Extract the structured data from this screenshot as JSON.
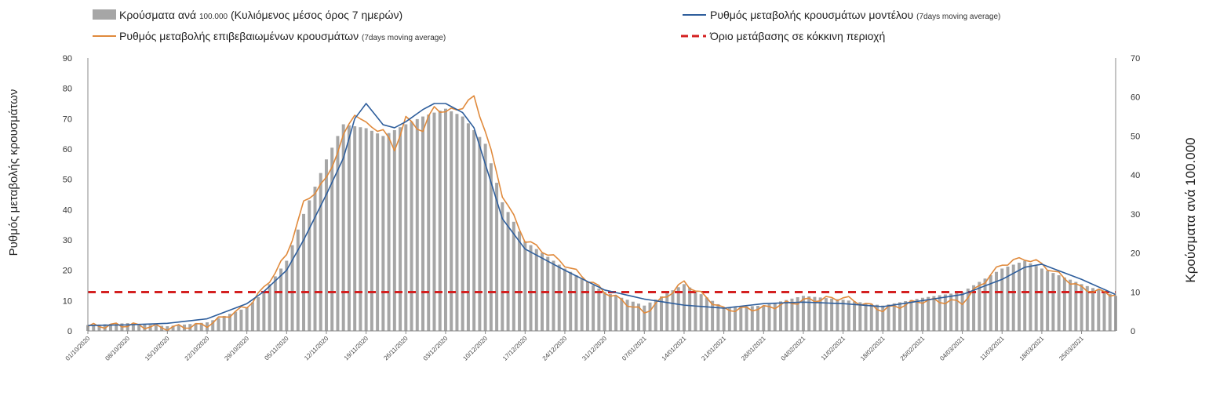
{
  "chart_data": {
    "type": "bar",
    "legend": {
      "bars": {
        "label": "Κρούσματα ανά ",
        "small": "100.000",
        "label2": " (Κυλιόμενος μέσος όρος 7 ημερών)"
      },
      "model": {
        "label": "Ρυθμός μεταβολής κρουσμάτων μοντέλου ",
        "small": "(7days moving average)"
      },
      "confirmed": {
        "label": "Ρυθμός μεταβολής επιβεβαιωμένων κρουσμάτων ",
        "small": "(7days moving average)"
      },
      "threshold": {
        "label": "Όριο μετάβασης σε κόκκινη περιοχή"
      }
    },
    "ylabel_left": "Ρυθμός μεταβολής κρουσμάτων",
    "ylabel_right": "Κρούσματα ανά 100.000",
    "ylim_left": [
      0,
      90
    ],
    "ylim_right": [
      0,
      70
    ],
    "yticks_left": [
      "0",
      "10",
      "20",
      "30",
      "40",
      "50",
      "60",
      "70",
      "80",
      "90"
    ],
    "yticks_right": [
      "0",
      "10",
      "20",
      "30",
      "40",
      "50",
      "60",
      "70"
    ],
    "x_start": "2020-10-01",
    "x_end": "2021-03-31",
    "x_tick_labels": [
      "01/10/2020",
      "08/10/2020",
      "15/10/2020",
      "22/10/2020",
      "29/10/2020",
      "05/11/2020",
      "12/11/2020",
      "19/11/2020",
      "26/11/2020",
      "03/12/2020",
      "10/12/2020",
      "17/12/2020",
      "24/12/2020",
      "31/12/2020",
      "07/01/2021",
      "14/01/2021",
      "21/01/2021",
      "28/01/2021",
      "04/02/2021",
      "11/02/2021",
      "18/02/2021",
      "25/02/2021",
      "04/03/2021",
      "11/03/2021",
      "18/03/2021",
      "25/03/2021"
    ],
    "threshold_value": 12.8,
    "colors": {
      "bars": "#a6a6a6",
      "model": "#2e5e9c",
      "confirmed": "#e08a3c",
      "threshold": "#d42020"
    },
    "bars_per_100k": {
      "dates": [
        "2020-10-01",
        "2020-10-08",
        "2020-10-15",
        "2020-10-22",
        "2020-10-29",
        "2020-11-01",
        "2020-11-05",
        "2020-11-08",
        "2020-11-12",
        "2020-11-15",
        "2020-11-19",
        "2020-11-22",
        "2020-11-26",
        "2020-11-29",
        "2020-12-03",
        "2020-12-06",
        "2020-12-10",
        "2020-12-13",
        "2020-12-17",
        "2020-12-24",
        "2020-12-31",
        "2021-01-07",
        "2021-01-14",
        "2021-01-21",
        "2021-01-28",
        "2021-02-04",
        "2021-02-11",
        "2021-02-18",
        "2021-02-25",
        "2021-03-04",
        "2021-03-11",
        "2021-03-15",
        "2021-03-18",
        "2021-03-25",
        "2021-03-31"
      ],
      "values": [
        1.5,
        2.0,
        1.2,
        2.2,
        6.0,
        10.0,
        18.0,
        30.0,
        44.0,
        53.0,
        52.0,
        50.0,
        53.0,
        55.0,
        57.0,
        55.0,
        48.0,
        33.0,
        23.0,
        16.0,
        10.0,
        6.5,
        12.0,
        6.0,
        6.5,
        9.0,
        8.0,
        6.5,
        8.5,
        10.0,
        16.0,
        18.0,
        16.0,
        12.0,
        9.0
      ]
    },
    "model": {
      "dates": [
        "2020-10-01",
        "2020-10-08",
        "2020-10-15",
        "2020-10-22",
        "2020-10-29",
        "2020-11-01",
        "2020-11-05",
        "2020-11-08",
        "2020-11-12",
        "2020-11-15",
        "2020-11-17",
        "2020-11-19",
        "2020-11-22",
        "2020-11-24",
        "2020-11-26",
        "2020-11-29",
        "2020-12-01",
        "2020-12-03",
        "2020-12-06",
        "2020-12-08",
        "2020-12-10",
        "2020-12-13",
        "2020-12-17",
        "2020-12-24",
        "2020-12-31",
        "2021-01-07",
        "2021-01-14",
        "2021-01-21",
        "2021-01-28",
        "2021-02-04",
        "2021-02-11",
        "2021-02-18",
        "2021-02-25",
        "2021-03-04",
        "2021-03-11",
        "2021-03-15",
        "2021-03-18",
        "2021-03-25",
        "2021-03-31"
      ],
      "values": [
        1.8,
        2.0,
        2.5,
        4.0,
        9.0,
        13.0,
        20.0,
        30.0,
        45.0,
        57.0,
        70.0,
        75.0,
        68.0,
        67.0,
        69.0,
        73.0,
        75.0,
        75.0,
        72.0,
        67.0,
        55.0,
        37.0,
        27.0,
        20.0,
        13.5,
        10.5,
        8.5,
        7.5,
        9.0,
        9.5,
        9.0,
        8.0,
        10.0,
        12.0,
        17.0,
        21.0,
        22.0,
        17.0,
        12.0
      ]
    },
    "confirmed": {
      "dates": [
        "2020-10-01",
        "2020-10-08",
        "2020-10-15",
        "2020-10-22",
        "2020-10-29",
        "2020-11-01",
        "2020-11-05",
        "2020-11-08",
        "2020-11-12",
        "2020-11-15",
        "2020-11-17",
        "2020-11-19",
        "2020-11-22",
        "2020-11-24",
        "2020-11-26",
        "2020-11-29",
        "2020-12-01",
        "2020-12-03",
        "2020-12-06",
        "2020-12-08",
        "2020-12-10",
        "2020-12-13",
        "2020-12-17",
        "2020-12-24",
        "2020-12-31",
        "2021-01-07",
        "2021-01-14",
        "2021-01-21",
        "2021-01-28",
        "2021-02-04",
        "2021-02-11",
        "2021-02-18",
        "2021-02-25",
        "2021-03-04",
        "2021-03-11",
        "2021-03-15",
        "2021-03-18",
        "2021-03-25",
        "2021-03-31"
      ],
      "values": [
        1.5,
        2.0,
        1.0,
        2.0,
        8.0,
        14.0,
        25.0,
        42.0,
        50.0,
        64.0,
        72.0,
        68.0,
        66.0,
        60.0,
        70.0,
        66.0,
        74.0,
        72.0,
        74.0,
        77.0,
        66.0,
        45.0,
        30.0,
        22.0,
        13.0,
        6.0,
        16.0,
        7.0,
        7.5,
        10.0,
        11.0,
        7.0,
        10.0,
        9.5,
        22.0,
        24.0,
        22.0,
        14.0,
        12.0
      ]
    }
  }
}
